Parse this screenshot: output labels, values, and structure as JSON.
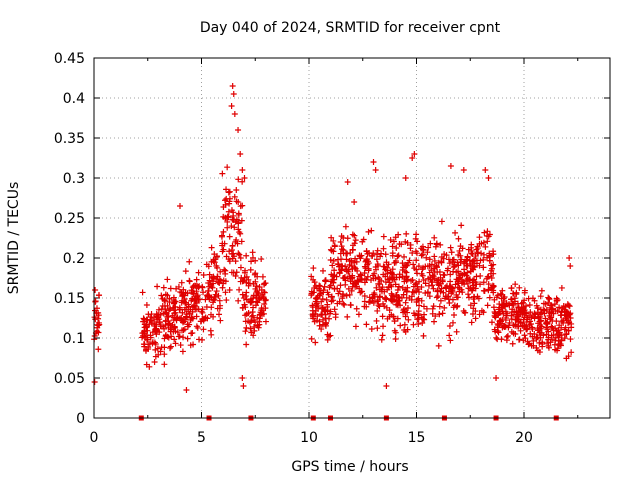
{
  "chart_data": {
    "type": "scatter",
    "title": "Day 040 of 2024, SRMTID for receiver cpnt",
    "xlabel": "GPS time / hours",
    "ylabel": "SRMTID / TECUs",
    "xlim": [
      0,
      24
    ],
    "ylim": [
      0,
      0.45
    ],
    "x_ticks": [
      0,
      5,
      10,
      15,
      20
    ],
    "x_tick_labels": [
      "0",
      "5",
      "10",
      "15",
      "20"
    ],
    "y_ticks": [
      0,
      0.05,
      0.1,
      0.15,
      0.2,
      0.25,
      0.3,
      0.35,
      0.4,
      0.45
    ],
    "y_tick_labels": [
      "0",
      "0.05",
      "0.1",
      "0.15",
      "0.2",
      "0.25",
      "0.3",
      "0.35",
      "0.4",
      "0.45"
    ],
    "grid": true,
    "marker": "+",
    "color": "#e00000",
    "series": [
      {
        "name": "SRMTID",
        "segments": [
          {
            "x_start": 0.0,
            "x_end": 0.25,
            "mean": 0.12,
            "spread": 0.045
          },
          {
            "x_start": 2.2,
            "x_end": 2.9,
            "mean": 0.11,
            "spread": 0.04
          },
          {
            "x_start": 2.9,
            "x_end": 4.0,
            "mean": 0.12,
            "spread": 0.045
          },
          {
            "x_start": 4.0,
            "x_end": 5.2,
            "mean": 0.14,
            "spread": 0.05
          },
          {
            "x_start": 5.2,
            "x_end": 5.9,
            "mean": 0.16,
            "spread": 0.05
          },
          {
            "x_start": 5.9,
            "x_end": 6.9,
            "mean": 0.23,
            "spread": 0.09
          },
          {
            "x_start": 6.9,
            "x_end": 7.5,
            "mean": 0.15,
            "spread": 0.05
          },
          {
            "x_start": 7.5,
            "x_end": 8.0,
            "mean": 0.15,
            "spread": 0.04
          },
          {
            "x_start": 10.1,
            "x_end": 11.0,
            "mean": 0.14,
            "spread": 0.045
          },
          {
            "x_start": 11.0,
            "x_end": 12.5,
            "mean": 0.18,
            "spread": 0.055
          },
          {
            "x_start": 12.5,
            "x_end": 14.0,
            "mean": 0.17,
            "spread": 0.06
          },
          {
            "x_start": 14.0,
            "x_end": 15.5,
            "mean": 0.17,
            "spread": 0.065
          },
          {
            "x_start": 15.5,
            "x_end": 17.0,
            "mean": 0.17,
            "spread": 0.06
          },
          {
            "x_start": 17.0,
            "x_end": 18.6,
            "mean": 0.18,
            "spread": 0.06
          },
          {
            "x_start": 18.6,
            "x_end": 20.0,
            "mean": 0.13,
            "spread": 0.04
          },
          {
            "x_start": 20.0,
            "x_end": 21.3,
            "mean": 0.12,
            "spread": 0.04
          },
          {
            "x_start": 21.3,
            "x_end": 22.2,
            "mean": 0.12,
            "spread": 0.045
          }
        ],
        "highlights": [
          {
            "x": 0.05,
            "y": 0.16
          },
          {
            "x": 0.03,
            "y": 0.045
          },
          {
            "x": 4.0,
            "y": 0.265
          },
          {
            "x": 4.3,
            "y": 0.035
          },
          {
            "x": 6.45,
            "y": 0.415
          },
          {
            "x": 6.5,
            "y": 0.405
          },
          {
            "x": 6.4,
            "y": 0.39
          },
          {
            "x": 6.55,
            "y": 0.38
          },
          {
            "x": 6.7,
            "y": 0.36
          },
          {
            "x": 6.8,
            "y": 0.33
          },
          {
            "x": 6.9,
            "y": 0.31
          },
          {
            "x": 7.0,
            "y": 0.3
          },
          {
            "x": 6.9,
            "y": 0.05
          },
          {
            "x": 6.95,
            "y": 0.04
          },
          {
            "x": 11.8,
            "y": 0.295
          },
          {
            "x": 12.1,
            "y": 0.27
          },
          {
            "x": 13.0,
            "y": 0.32
          },
          {
            "x": 13.1,
            "y": 0.31
          },
          {
            "x": 13.6,
            "y": 0.04
          },
          {
            "x": 14.5,
            "y": 0.3
          },
          {
            "x": 14.8,
            "y": 0.325
          },
          {
            "x": 14.9,
            "y": 0.33
          },
          {
            "x": 16.6,
            "y": 0.315
          },
          {
            "x": 17.2,
            "y": 0.31
          },
          {
            "x": 18.2,
            "y": 0.31
          },
          {
            "x": 18.35,
            "y": 0.3
          },
          {
            "x": 18.7,
            "y": 0.05
          },
          {
            "x": 22.1,
            "y": 0.2
          },
          {
            "x": 22.15,
            "y": 0.19
          }
        ],
        "gap_markers_x": [
          2.2,
          5.35,
          7.3,
          10.2,
          11.0,
          13.6,
          16.3,
          18.7,
          21.5
        ]
      }
    ]
  }
}
